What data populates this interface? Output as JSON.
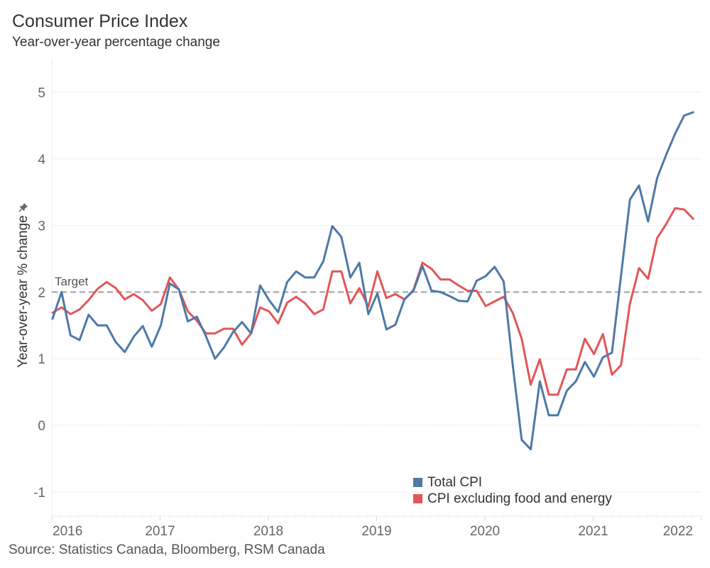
{
  "header": {
    "title": "Consumer Price Index",
    "subtitle": "Year-over-year percentage change"
  },
  "footer": {
    "source": "Source: Statistics Canada, Bloomberg, RSM Canada"
  },
  "icons": {
    "ylabel_pin": "pin-icon"
  },
  "colors": {
    "total_cpi": "#4e79a7",
    "core_cpi": "#e15759",
    "target_line": "#a0a0a0",
    "gridline": "#efefef"
  },
  "chart_data": {
    "type": "line",
    "title": "Consumer Price Index",
    "subtitle": "Year-over-year percentage change",
    "xlabel": "",
    "ylabel": "Year-over-year % change",
    "ylim": [
      -1.35,
      5.5
    ],
    "yticks": [
      -1,
      0,
      1,
      2,
      3,
      4,
      5
    ],
    "ytick_labels": [
      "-1",
      "0",
      "1",
      "2",
      "3",
      "4",
      "5"
    ],
    "xticks": [
      "2016",
      "2017",
      "2018",
      "2019",
      "2020",
      "2021",
      "2022"
    ],
    "grid": true,
    "legend": "bottom-right",
    "reference_line": {
      "label": "Target",
      "value": 2
    },
    "x": [
      "2015-12",
      "2016-01",
      "2016-02",
      "2016-03",
      "2016-04",
      "2016-05",
      "2016-06",
      "2016-07",
      "2016-08",
      "2016-09",
      "2016-10",
      "2016-11",
      "2016-12",
      "2017-01",
      "2017-02",
      "2017-03",
      "2017-04",
      "2017-05",
      "2017-06",
      "2017-07",
      "2017-08",
      "2017-09",
      "2017-10",
      "2017-11",
      "2017-12",
      "2018-01",
      "2018-02",
      "2018-03",
      "2018-04",
      "2018-05",
      "2018-06",
      "2018-07",
      "2018-08",
      "2018-09",
      "2018-10",
      "2018-11",
      "2018-12",
      "2019-01",
      "2019-02",
      "2019-03",
      "2019-04",
      "2019-05",
      "2019-06",
      "2019-07",
      "2019-08",
      "2019-09",
      "2019-10",
      "2019-11",
      "2019-12",
      "2020-01",
      "2020-02",
      "2020-03",
      "2020-04",
      "2020-05",
      "2020-06",
      "2020-07",
      "2020-08",
      "2020-09",
      "2020-10",
      "2020-11",
      "2020-12",
      "2021-01",
      "2021-02",
      "2021-03",
      "2021-04",
      "2021-05",
      "2021-06",
      "2021-07",
      "2021-08",
      "2021-09",
      "2021-10",
      "2021-11"
    ],
    "series": [
      {
        "name": "Total CPI",
        "color": "#4e79a7",
        "values": [
          1.6,
          2.0,
          1.35,
          1.28,
          1.66,
          1.5,
          1.5,
          1.25,
          1.1,
          1.33,
          1.49,
          1.18,
          1.5,
          2.13,
          2.04,
          1.56,
          1.63,
          1.34,
          1.0,
          1.17,
          1.4,
          1.55,
          1.38,
          2.1,
          1.88,
          1.7,
          2.15,
          2.31,
          2.22,
          2.22,
          2.46,
          2.99,
          2.83,
          2.22,
          2.44,
          1.67,
          1.98,
          1.44,
          1.51,
          1.89,
          2.02,
          2.39,
          2.02,
          2.0,
          1.94,
          1.87,
          1.86,
          2.17,
          2.24,
          2.38,
          2.16,
          0.91,
          -0.22,
          -0.36,
          0.66,
          0.15,
          0.15,
          0.52,
          0.66,
          0.95,
          0.73,
          1.02,
          1.09,
          2.24,
          3.39,
          3.6,
          3.06,
          3.71,
          4.06,
          4.38,
          4.65,
          4.7
        ]
      },
      {
        "name": "CPI excluding food and energy",
        "color": "#e15759",
        "values": [
          1.69,
          1.77,
          1.67,
          1.74,
          1.88,
          2.05,
          2.15,
          2.06,
          1.89,
          1.97,
          1.88,
          1.72,
          1.82,
          2.22,
          2.04,
          1.71,
          1.57,
          1.38,
          1.38,
          1.45,
          1.45,
          1.21,
          1.38,
          1.77,
          1.71,
          1.53,
          1.84,
          1.93,
          1.83,
          1.67,
          1.74,
          2.31,
          2.31,
          1.83,
          2.06,
          1.78,
          2.31,
          1.91,
          1.97,
          1.89,
          2.03,
          2.44,
          2.35,
          2.19,
          2.19,
          2.1,
          2.02,
          2.02,
          1.79,
          1.86,
          1.93,
          1.69,
          1.3,
          0.61,
          0.99,
          0.46,
          0.46,
          0.84,
          0.84,
          1.3,
          1.07,
          1.37,
          0.76,
          0.9,
          1.83,
          2.36,
          2.2,
          2.81,
          3.02,
          3.26,
          3.24,
          3.1
        ]
      }
    ]
  }
}
